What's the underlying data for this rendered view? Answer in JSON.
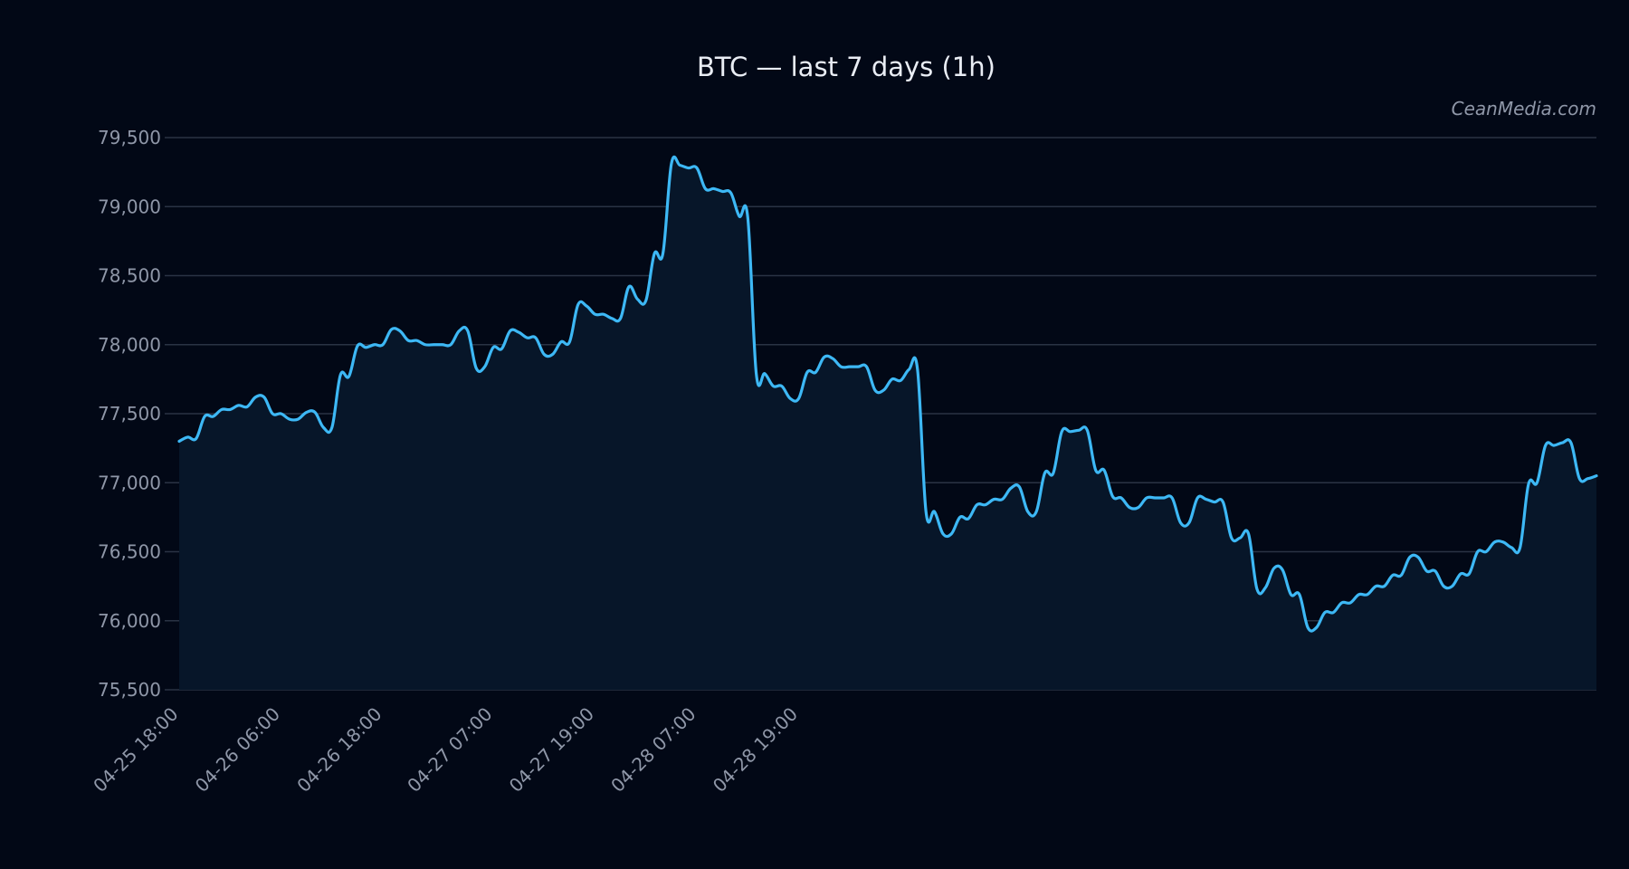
{
  "colors": {
    "background": "#020816",
    "line": "#3db8f5",
    "area": "#071629",
    "grid": "#2a3344",
    "text": "#8f97a8",
    "title": "#e9edf4"
  },
  "watermark": "CeanMedia.com",
  "chart_data": {
    "type": "area",
    "title": "BTC — last 7 days (1h)",
    "xlabel": "",
    "ylabel": "",
    "ylim": [
      75500,
      79500
    ],
    "yticks": [
      75500,
      76000,
      76500,
      77000,
      77500,
      78000,
      78500,
      79000,
      79500
    ],
    "ytick_labels": [
      "75,500",
      "76,000",
      "76,500",
      "77,000",
      "77,500",
      "78,000",
      "78,500",
      "79,000",
      "79,500"
    ],
    "x_start": "04-25 18:00",
    "x_step_hours": 1,
    "xticks": [
      "04-25 18:00",
      "04-26 06:00",
      "04-26 18:00",
      "04-27 07:00",
      "04-27 19:00",
      "04-28 07:00",
      "04-28 19:00"
    ],
    "grid": true,
    "series": [
      {
        "values": [
          77300,
          77330,
          77320,
          77480,
          77480,
          77530,
          77530,
          77560,
          77550,
          77620,
          77620,
          77500,
          77500,
          77460,
          77460,
          77510,
          77510,
          77400,
          77400,
          77780,
          77770,
          77990,
          77980,
          78000,
          78000,
          78110,
          78100,
          78030,
          78030,
          78000,
          78000,
          78000,
          78000,
          78100,
          78100,
          77830,
          77840,
          77980,
          77970,
          78100,
          78090,
          78050,
          78050,
          77930,
          77930,
          78020,
          78020,
          78290,
          78280,
          78220,
          78220,
          78190,
          78190,
          78420,
          78330,
          78320,
          78660,
          78660,
          79310,
          79300,
          79280,
          79280,
          79130,
          79130,
          79110,
          79100,
          78930,
          78920,
          77790,
          77790,
          77700,
          77700,
          77610,
          77610,
          77800,
          77800,
          77910,
          77900,
          77840,
          77840,
          77840,
          77840,
          77670,
          77670,
          77750,
          77740,
          77820,
          77820,
          76790,
          76790,
          76630,
          76630,
          76750,
          76740,
          76840,
          76840,
          76880,
          76880,
          76960,
          76970,
          76790,
          76790,
          77070,
          77070,
          77370,
          77370,
          77380,
          77380,
          77090,
          77090,
          76900,
          76890,
          76820,
          76820,
          76890,
          76890,
          76890,
          76890,
          76710,
          76710,
          76890,
          76880,
          76860,
          76860,
          76600,
          76600,
          76630,
          76230,
          76240,
          76380,
          76370,
          76190,
          76190,
          75950,
          75950,
          76060,
          76060,
          76130,
          76130,
          76190,
          76190,
          76250,
          76250,
          76330,
          76330,
          76460,
          76460,
          76360,
          76360,
          76250,
          76250,
          76340,
          76340,
          76500,
          76500,
          76570,
          76570,
          76530,
          76530,
          76990,
          77000,
          77270,
          77270,
          77290,
          77290,
          77030,
          77030,
          77050
        ]
      }
    ]
  }
}
